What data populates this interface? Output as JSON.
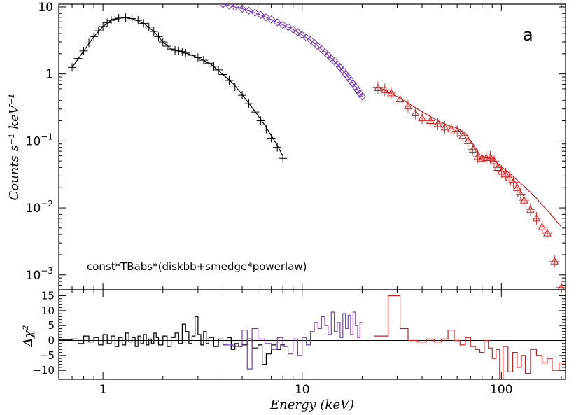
{
  "chart_data": [
    {
      "type": "scatter",
      "panel": "spectrum",
      "title": "",
      "xlabel": "",
      "ylabel": "Counts s⁻¹ keV⁻¹",
      "xscale": "log",
      "yscale": "log",
      "xlim": [
        0.6,
        210
      ],
      "ylim": [
        0.0006,
        11
      ],
      "x_tick_labels": [
        {
          "value": 1,
          "label": "1"
        },
        {
          "value": 10,
          "label": "10"
        },
        {
          "value": 100,
          "label": "100"
        }
      ],
      "y_tick_labels": [
        {
          "value": 10,
          "label": "10"
        },
        {
          "value": 1,
          "label": "1"
        },
        {
          "value": 0.1,
          "label": "10",
          "exp": "−1"
        },
        {
          "value": 0.01,
          "label": "10",
          "exp": "−2"
        },
        {
          "value": 0.001,
          "label": "10",
          "exp": "−3"
        }
      ],
      "grid": false,
      "legend": null,
      "annotation": "const*TBabs*(diskbb+smedge*powerlaw)",
      "panel_label": "a",
      "series": [
        {
          "marker": "cross",
          "color": "#000000",
          "x": [
            0.7,
            0.75,
            0.8,
            0.85,
            0.9,
            0.95,
            1.0,
            1.05,
            1.1,
            1.15,
            1.2,
            1.3,
            1.4,
            1.5,
            1.6,
            1.7,
            1.8,
            1.9,
            2.0,
            2.1,
            2.2,
            2.3,
            2.4,
            2.5,
            2.6,
            2.8,
            3.0,
            3.2,
            3.4,
            3.6,
            3.8,
            4.0,
            4.3,
            4.6,
            5.0,
            5.4,
            5.8,
            6.2,
            6.6,
            7.0,
            7.5,
            8.0
          ],
          "y": [
            1.25,
            1.7,
            2.2,
            2.9,
            3.6,
            4.4,
            5.1,
            5.8,
            6.3,
            6.6,
            6.8,
            6.9,
            6.7,
            6.3,
            5.7,
            5.0,
            4.3,
            3.6,
            3.0,
            2.6,
            2.35,
            2.25,
            2.2,
            2.15,
            2.05,
            1.9,
            1.75,
            1.6,
            1.45,
            1.3,
            1.15,
            0.98,
            0.8,
            0.64,
            0.48,
            0.36,
            0.27,
            0.2,
            0.15,
            0.11,
            0.08,
            0.055
          ],
          "model_x": [
            0.7,
            0.8,
            0.9,
            1.0,
            1.1,
            1.2,
            1.3,
            1.4,
            1.6,
            1.8,
            2.0,
            2.2,
            2.4,
            2.6,
            2.8,
            3.0,
            3.5,
            4.0,
            4.5,
            5.0,
            5.5,
            6.0,
            6.5,
            7.0,
            7.5,
            8.0
          ],
          "model_y": [
            1.25,
            2.2,
            3.6,
            5.1,
            6.3,
            6.8,
            6.9,
            6.7,
            5.7,
            4.3,
            3.0,
            2.35,
            2.2,
            2.05,
            1.9,
            1.75,
            1.38,
            0.98,
            0.72,
            0.49,
            0.34,
            0.24,
            0.17,
            0.12,
            0.085,
            0.06
          ]
        },
        {
          "marker": "diamond",
          "color": "#7a3fc0",
          "x": [
            4.0,
            4.3,
            4.6,
            5.0,
            5.4,
            5.8,
            6.2,
            6.6,
            7.0,
            7.5,
            8.0,
            8.5,
            9.0,
            9.5,
            10.0,
            10.5,
            11.0,
            11.5,
            12.0,
            12.5,
            13.0,
            13.5,
            14.0,
            14.5,
            15.0,
            15.5,
            16.0,
            16.5,
            17.0,
            17.5,
            18.0,
            18.5,
            19.0,
            19.5,
            20.0
          ],
          "y": [
            11.0,
            10.5,
            10.0,
            9.4,
            8.8,
            8.2,
            7.6,
            7.0,
            6.5,
            5.9,
            5.4,
            5.0,
            4.6,
            4.2,
            3.8,
            3.5,
            3.2,
            2.9,
            2.6,
            2.35,
            2.1,
            1.9,
            1.7,
            1.55,
            1.4,
            1.25,
            1.12,
            1.0,
            0.9,
            0.8,
            0.72,
            0.64,
            0.57,
            0.51,
            0.46
          ],
          "model_x": [
            4.0,
            5.0,
            6.0,
            7.0,
            8.0,
            9.0,
            10.0,
            11.0,
            12.0,
            13.0,
            14.0,
            15.0,
            16.0,
            17.0,
            18.0,
            19.0,
            20.0
          ],
          "model_y": [
            11.0,
            9.4,
            7.9,
            6.5,
            5.4,
            4.6,
            3.8,
            3.2,
            2.6,
            2.1,
            1.7,
            1.4,
            1.12,
            0.9,
            0.72,
            0.57,
            0.46
          ]
        },
        {
          "marker": "triangle",
          "color": "#cc1f1f",
          "x": [
            24,
            26,
            28,
            31,
            34,
            37,
            40,
            44,
            48,
            52,
            56,
            60,
            64,
            68,
            72,
            76,
            80,
            84,
            88,
            92,
            96,
            100,
            105,
            110,
            115,
            120,
            125,
            130,
            140,
            150,
            160,
            170,
            185,
            200
          ],
          "y": [
            0.62,
            0.58,
            0.52,
            0.42,
            0.33,
            0.26,
            0.22,
            0.2,
            0.18,
            0.16,
            0.15,
            0.14,
            0.12,
            0.1,
            0.075,
            0.058,
            0.055,
            0.056,
            0.057,
            0.05,
            0.04,
            0.035,
            0.032,
            0.028,
            0.024,
            0.02,
            0.016,
            0.013,
            0.0095,
            0.007,
            0.0052,
            0.0042,
            0.0016,
            0.00065
          ],
          "model_x": [
            24,
            30,
            36,
            42,
            48,
            54,
            60,
            66,
            72,
            78,
            84,
            90,
            96,
            100,
            110,
            120,
            130,
            140,
            150,
            160,
            170,
            180,
            190,
            200
          ],
          "model_y": [
            0.64,
            0.46,
            0.33,
            0.25,
            0.2,
            0.17,
            0.155,
            0.13,
            0.09,
            0.062,
            0.056,
            0.054,
            0.046,
            0.041,
            0.033,
            0.026,
            0.021,
            0.017,
            0.014,
            0.011,
            0.0092,
            0.0076,
            0.0062,
            0.0052
          ]
        }
      ]
    },
    {
      "type": "line",
      "panel": "residuals",
      "title": "",
      "xlabel": "Energy (keV)",
      "ylabel": "Δχ²",
      "xscale": "log",
      "xlim": [
        0.6,
        210
      ],
      "ylim": [
        -13,
        17
      ],
      "y_tick_labels": [
        {
          "value": 15,
          "label": "15"
        },
        {
          "value": 10,
          "label": "10"
        },
        {
          "value": 5,
          "label": "5"
        },
        {
          "value": 0,
          "label": "0"
        },
        {
          "value": -5,
          "label": "−5"
        },
        {
          "value": -10,
          "label": "−10"
        }
      ],
      "zero_line": true,
      "series": [
        {
          "color": "#000000",
          "x": [
            0.6,
            0.7,
            0.75,
            0.8,
            0.85,
            0.9,
            0.95,
            1.0,
            1.05,
            1.1,
            1.15,
            1.2,
            1.25,
            1.3,
            1.35,
            1.4,
            1.45,
            1.5,
            1.55,
            1.6,
            1.65,
            1.7,
            1.75,
            1.8,
            1.85,
            1.9,
            2.0,
            2.1,
            2.2,
            2.3,
            2.4,
            2.5,
            2.6,
            2.7,
            2.8,
            2.9,
            3.0,
            3.1,
            3.2,
            3.3,
            3.4,
            3.6,
            3.8,
            4.0,
            4.2,
            4.4,
            4.6,
            4.8,
            5.0,
            5.3,
            5.6,
            6.0,
            6.3,
            6.6,
            7.0,
            7.4,
            7.8,
            8.2
          ],
          "y": [
            0.2,
            0.5,
            -1.0,
            1.5,
            -0.5,
            1.0,
            -1.5,
            2.0,
            -1.0,
            1.5,
            -2.0,
            1.0,
            -1.5,
            2.5,
            -0.5,
            1.0,
            -2.0,
            1.5,
            -1.0,
            2.0,
            -1.5,
            0.5,
            -1.0,
            2.5,
            1.0,
            -1.5,
            1.5,
            -2.0,
            1.0,
            2.5,
            -1.0,
            5.5,
            3.0,
            -1.0,
            1.5,
            8.0,
            2.0,
            -1.5,
            3.0,
            -1.0,
            1.0,
            -2.0,
            0.5,
            -1.5,
            1.0,
            -3.0,
            -1.0,
            -2.0,
            -1.5,
            0.5,
            -2.5,
            -1.5,
            -8.0,
            -4.5,
            -1.5,
            -3.0,
            -1.5,
            0.0
          ]
        },
        {
          "color": "#7a3fc0",
          "x": [
            4.0,
            4.5,
            5.0,
            5.3,
            5.6,
            6.0,
            6.5,
            7.0,
            7.5,
            8.0,
            8.5,
            9.0,
            9.5,
            10.0,
            10.5,
            11.0,
            11.5,
            12.0,
            12.5,
            13.0,
            13.5,
            14.0,
            14.5,
            15.0,
            15.5,
            16.0,
            16.5,
            17.0,
            17.5,
            18.0,
            18.5,
            19.0,
            19.5,
            20.0
          ],
          "y": [
            -1.5,
            -2.0,
            3.5,
            -9.5,
            4.0,
            0.5,
            -1.0,
            -3.0,
            1.0,
            -2.0,
            -4.5,
            0.5,
            -5.0,
            1.0,
            -1.5,
            3.0,
            6.0,
            4.0,
            8.0,
            5.0,
            2.0,
            9.5,
            3.0,
            6.0,
            1.0,
            9.0,
            4.0,
            8.5,
            2.0,
            9.5,
            5.0,
            1.0,
            6.0,
            0.0
          ]
        },
        {
          "color": "#cc1f1f",
          "x": [
            23,
            27,
            31,
            34,
            38,
            42,
            46,
            50,
            54,
            58,
            62,
            66,
            70,
            74,
            78,
            82,
            86,
            90,
            94,
            98,
            102,
            108,
            114,
            120,
            126,
            132,
            140,
            150,
            160,
            170,
            180,
            195,
            210
          ],
          "y": [
            1.5,
            15.0,
            4.0,
            0.0,
            -0.5,
            0.5,
            -0.5,
            0.5,
            3.5,
            0.0,
            -1.5,
            1.0,
            -2.0,
            -3.0,
            -4.0,
            0.0,
            -2.5,
            -6.0,
            -3.0,
            -13.0,
            -2.0,
            -10.5,
            -4.0,
            -9.0,
            -5.0,
            -11.0,
            -3.0,
            -5.0,
            -7.5,
            -6.0,
            -10.0,
            -7.5,
            -8.0
          ]
        }
      ]
    }
  ]
}
